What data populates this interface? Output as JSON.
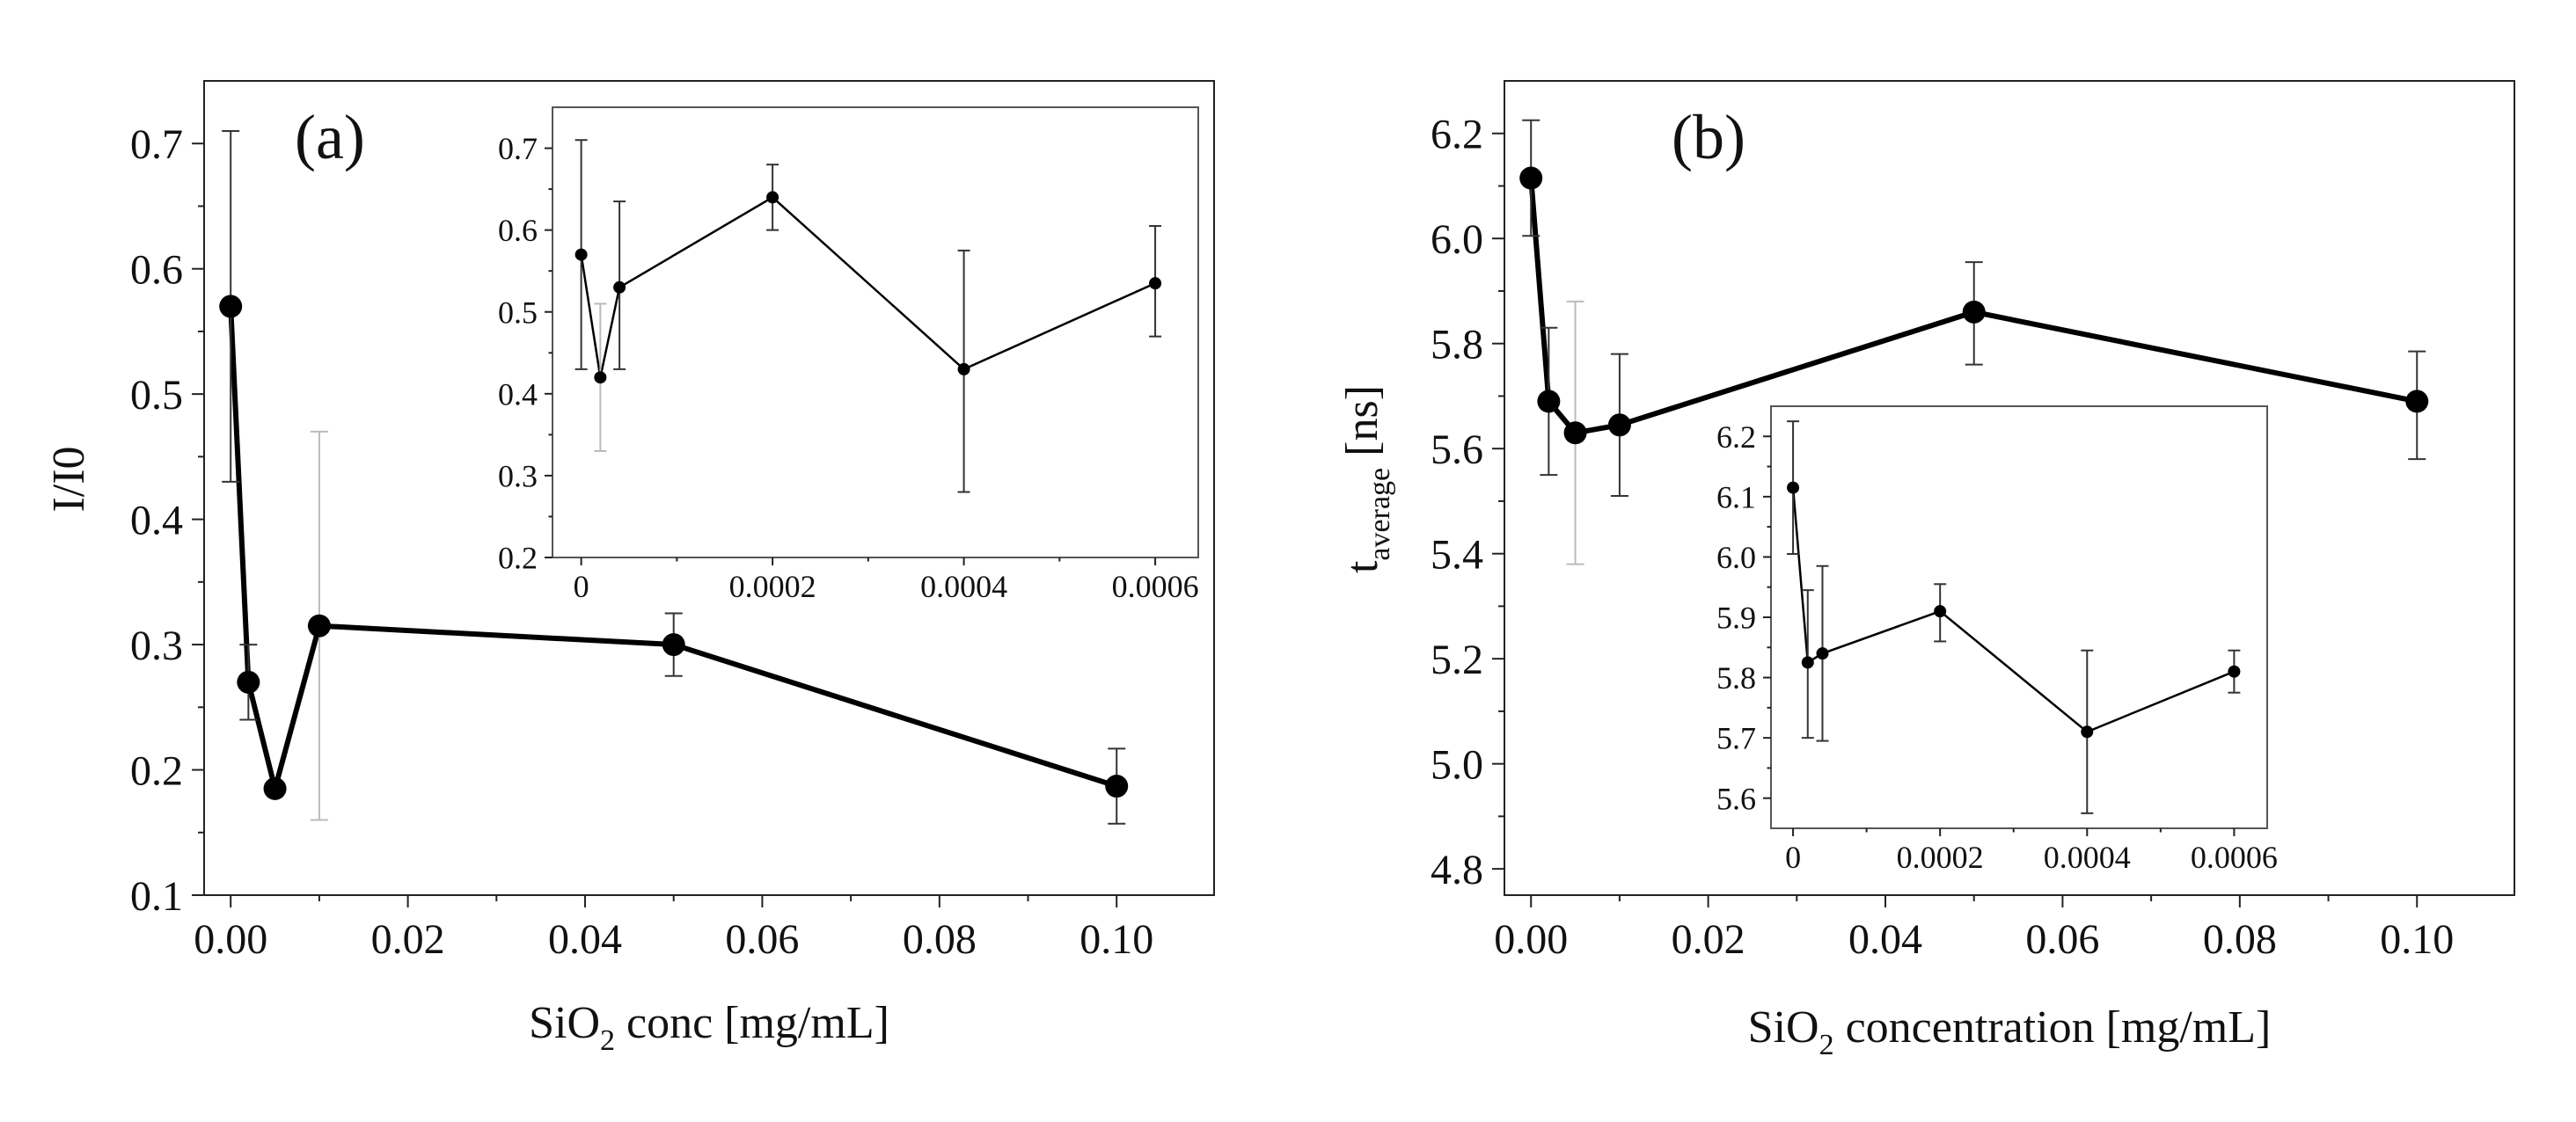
{
  "chart_data": [
    {
      "type": "line",
      "panel": "a",
      "title": "(a)",
      "xlabel_main": "SiO",
      "xlabel_sub": "2",
      "xlabel_rest": " conc [mg/mL]",
      "ylabel": "I/I0",
      "xlim": [
        -0.003,
        0.111
      ],
      "ylim": [
        0.1,
        0.75
      ],
      "xticks": [
        0.0,
        0.02,
        0.04,
        0.06,
        0.08,
        0.1
      ],
      "xtick_labels": [
        "0.00",
        "0.02",
        "0.04",
        "0.06",
        "0.08",
        "0.10"
      ],
      "yticks": [
        0.1,
        0.2,
        0.3,
        0.4,
        0.5,
        0.6,
        0.7
      ],
      "ytick_labels": [
        "0.1",
        "0.2",
        "0.3",
        "0.4",
        "0.5",
        "0.6",
        "0.7"
      ],
      "series": [
        {
          "name": "main",
          "x": [
            0.0,
            0.002,
            0.005,
            0.01,
            0.05,
            0.1
          ],
          "y": [
            0.57,
            0.27,
            0.185,
            0.315,
            0.3,
            0.187
          ],
          "err_low": [
            0.43,
            0.24,
            0.185,
            0.16,
            0.275,
            0.157
          ],
          "err_high": [
            0.71,
            0.3,
            0.185,
            0.47,
            0.325,
            0.217
          ],
          "light": [
            false,
            false,
            false,
            true,
            false,
            false
          ]
        }
      ],
      "inset": {
        "xlim": [
          -3e-05,
          0.000645
        ],
        "ylim": [
          0.2,
          0.75
        ],
        "xticks": [
          0.0,
          0.0002,
          0.0004,
          0.0006
        ],
        "xtick_labels": [
          "0",
          "0.0002",
          "0.0004",
          "0.0006"
        ],
        "yticks": [
          0.2,
          0.3,
          0.4,
          0.5,
          0.6,
          0.7
        ],
        "ytick_labels": [
          "0.2",
          "0.3",
          "0.4",
          "0.5",
          "0.6",
          "0.7"
        ],
        "x": [
          0.0,
          2e-05,
          4e-05,
          0.0002,
          0.0004,
          0.0006
        ],
        "y": [
          0.57,
          0.42,
          0.53,
          0.64,
          0.43,
          0.535
        ],
        "err_low": [
          0.43,
          0.33,
          0.43,
          0.6,
          0.28,
          0.47
        ],
        "err_high": [
          0.71,
          0.51,
          0.635,
          0.68,
          0.575,
          0.605
        ],
        "light": [
          false,
          true,
          false,
          false,
          false,
          false
        ]
      }
    },
    {
      "type": "line",
      "panel": "b",
      "title": "(b)",
      "xlabel_main": "SiO",
      "xlabel_sub": "2",
      "xlabel_rest": " concentration [mg/mL]",
      "ylabel_main": "t",
      "ylabel_sub": "average",
      "ylabel_rest": " [ns]",
      "xlim": [
        -0.003,
        0.111
      ],
      "ylim": [
        4.75,
        6.3
      ],
      "xticks": [
        0.0,
        0.02,
        0.04,
        0.06,
        0.08,
        0.1
      ],
      "xtick_labels": [
        "0.00",
        "0.02",
        "0.04",
        "0.06",
        "0.08",
        "0.10"
      ],
      "yticks": [
        4.8,
        5.0,
        5.2,
        5.4,
        5.6,
        5.8,
        6.0,
        6.2
      ],
      "ytick_labels": [
        "4.8",
        "5.0",
        "5.2",
        "5.4",
        "5.6",
        "5.8",
        "6.0",
        "6.2"
      ],
      "series": [
        {
          "name": "main",
          "x": [
            0.0,
            0.002,
            0.005,
            0.01,
            0.05,
            0.1
          ],
          "y": [
            6.115,
            5.69,
            5.63,
            5.645,
            5.86,
            5.69
          ],
          "err_low": [
            6.005,
            5.55,
            5.38,
            5.51,
            5.76,
            5.58
          ],
          "err_high": [
            6.225,
            5.83,
            5.88,
            5.78,
            5.955,
            5.785
          ],
          "light": [
            false,
            false,
            true,
            false,
            false,
            false
          ]
        }
      ],
      "inset": {
        "xlim": [
          -3e-05,
          0.000645
        ],
        "ylim": [
          5.55,
          6.25
        ],
        "xticks": [
          0.0,
          0.0002,
          0.0004,
          0.0006
        ],
        "xtick_labels": [
          "0",
          "0.0002",
          "0.0004",
          "0.0006"
        ],
        "yticks": [
          5.6,
          5.7,
          5.8,
          5.9,
          6.0,
          6.1,
          6.2
        ],
        "ytick_labels": [
          "5.6",
          "5.7",
          "5.8",
          "5.9",
          "6.0",
          "6.1",
          "6.2"
        ],
        "x": [
          0.0,
          2e-05,
          4e-05,
          0.0002,
          0.0004,
          0.0006
        ],
        "y": [
          6.115,
          5.825,
          5.84,
          5.91,
          5.71,
          5.81
        ],
        "err_low": [
          6.005,
          5.7,
          5.695,
          5.86,
          5.575,
          5.775
        ],
        "err_high": [
          6.225,
          5.945,
          5.985,
          5.955,
          5.845,
          5.845
        ],
        "light": [
          false,
          false,
          false,
          false,
          false,
          false
        ]
      }
    }
  ]
}
